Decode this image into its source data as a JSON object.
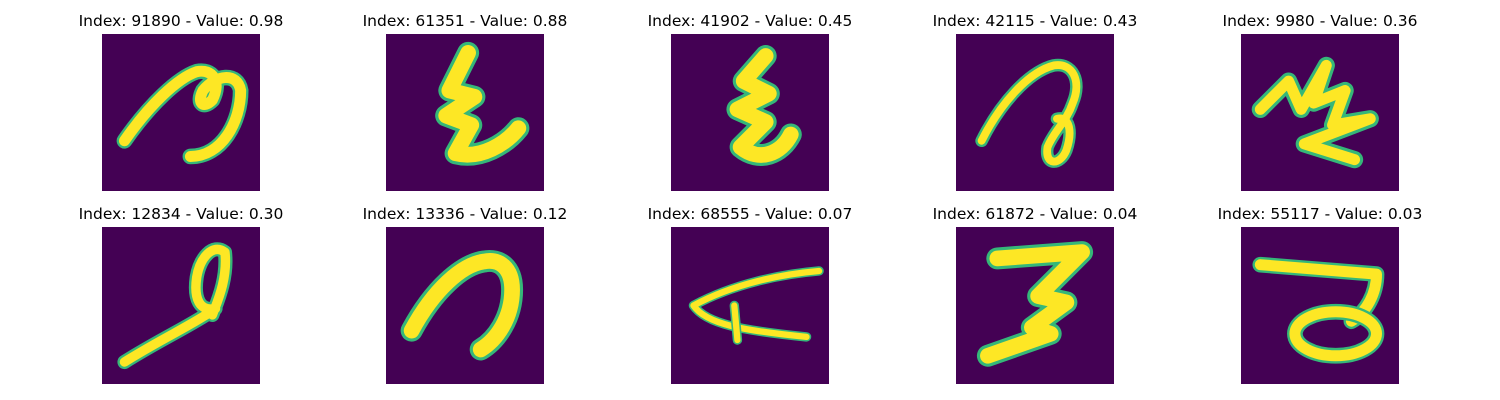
{
  "colors": {
    "background": "#440154",
    "stroke": "#fde725",
    "stroke_edge": "#35b779",
    "stroke_mid": "#21918c"
  },
  "grid": {
    "rows": [
      [
        {
          "title": "Index: 91890 - Value: 0.98",
          "glyph": "g1"
        },
        {
          "title": "Index: 61351 - Value: 0.88",
          "glyph": "g2"
        },
        {
          "title": "Index: 41902 - Value: 0.45",
          "glyph": "g3"
        },
        {
          "title": "Index: 42115 - Value: 0.43",
          "glyph": "g4"
        },
        {
          "title": "Index: 9980 - Value: 0.36",
          "glyph": "g5"
        }
      ],
      [
        {
          "title": "Index: 12834 - Value: 0.30",
          "glyph": "g6"
        },
        {
          "title": "Index: 13336 - Value: 0.12",
          "glyph": "g7"
        },
        {
          "title": "Index: 68555 - Value: 0.07",
          "glyph": "g8"
        },
        {
          "title": "Index: 61872 - Value: 0.04",
          "glyph": "g9"
        },
        {
          "title": "Index: 55117 - Value: 0.03",
          "glyph": "g10"
        }
      ]
    ]
  }
}
